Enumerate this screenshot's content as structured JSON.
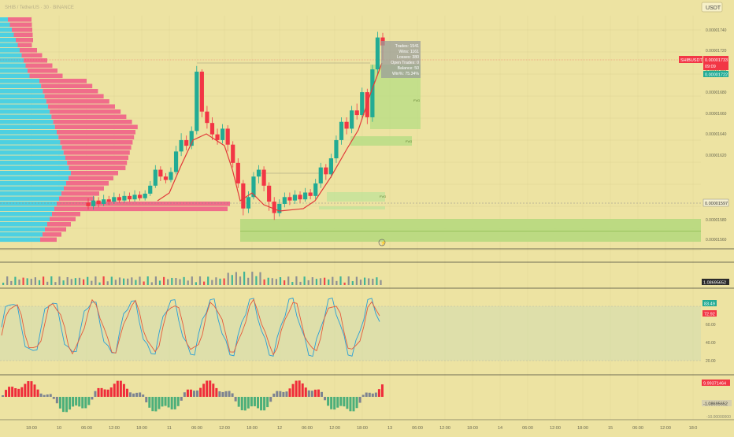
{
  "header": {
    "symbol_faded": "SHIB / TetherUS · 30 · BINANCE",
    "quote_badge": "USDT"
  },
  "colors": {
    "bg": "#ede3a2",
    "up": "#22ab94",
    "down": "#f23645",
    "vol_teal": "#4dd0e1",
    "vol_pink": "#f06d8a",
    "zone_green": "#a5d46a",
    "zone_light": "#b9dd86",
    "grid": "#d9cf92",
    "text": "#6b6a52",
    "k_line": "#2a9fd6",
    "d_line": "#e55b3c",
    "osc_up": "#ef2c3a",
    "osc_down": "#4caf7a",
    "osc_neutral": "#7d8391"
  },
  "price_axis": {
    "ticks": [
      "0.00001740",
      "0.00001720",
      "0.00001700",
      "0.00001680",
      "0.00001660",
      "0.00001640",
      "0.00001620",
      "0.00001580",
      "0.00001560"
    ],
    "symbol_label": "SHIBUSDT",
    "last_price": "0.00001733",
    "countdown": "09:09",
    "second_price": "0.00001722",
    "crosshair_price": "0.00001597"
  },
  "stats_box": {
    "trades": "Trades: 1541",
    "wins": "Wins: 1161",
    "losses": "Losses: 380",
    "open": "Open Trades: 0",
    "balance": "Balance: 50",
    "winrate": "Win%: 75.34%"
  },
  "fvg_labels": [
    "FVG",
    "FVG",
    "FVG"
  ],
  "volume_pane": {
    "value": "1.08695652"
  },
  "stoch_pane": {
    "k_value": "83.49",
    "d_value": "72.92",
    "ticks": [
      "60.00",
      "40.00",
      "20.00"
    ]
  },
  "osc_pane": {
    "top_value": "9.99371464",
    "bottom_value": "-1.08695652",
    "scale_tick": "-10.00000000"
  },
  "time_axis": {
    "labels": [
      "18:00",
      "10",
      "06:00",
      "12:00",
      "18:00",
      "11",
      "06:00",
      "12:00",
      "18:00",
      "12",
      "06:00",
      "12:00",
      "18:00",
      "13",
      "06:00",
      "12:00",
      "18:00",
      "14",
      "06:00",
      "12:00",
      "18:00",
      "15",
      "06:00",
      "12:00",
      "18:0"
    ]
  },
  "chart_data": {
    "type": "candlestick",
    "candles": [
      [
        1595,
        1592,
        1599,
        1589
      ],
      [
        1592,
        1597,
        1601,
        1589
      ],
      [
        1597,
        1594,
        1600,
        1591
      ],
      [
        1594,
        1598,
        1602,
        1592
      ],
      [
        1598,
        1596,
        1601,
        1593
      ],
      [
        1596,
        1600,
        1604,
        1594
      ],
      [
        1600,
        1597,
        1603,
        1595
      ],
      [
        1597,
        1601,
        1605,
        1595
      ],
      [
        1601,
        1598,
        1604,
        1596
      ],
      [
        1598,
        1602,
        1606,
        1596
      ],
      [
        1602,
        1599,
        1605,
        1597
      ],
      [
        1599,
        1603,
        1606,
        1597
      ],
      [
        1603,
        1610,
        1614,
        1601
      ],
      [
        1610,
        1624,
        1628,
        1608
      ],
      [
        1624,
        1618,
        1627,
        1614
      ],
      [
        1618,
        1615,
        1621,
        1612
      ],
      [
        1615,
        1622,
        1626,
        1613
      ],
      [
        1622,
        1640,
        1645,
        1620
      ],
      [
        1640,
        1650,
        1656,
        1636
      ],
      [
        1650,
        1645,
        1654,
        1641
      ],
      [
        1645,
        1658,
        1662,
        1642
      ],
      [
        1658,
        1710,
        1715,
        1655
      ],
      [
        1710,
        1675,
        1712,
        1670
      ],
      [
        1675,
        1665,
        1680,
        1660
      ],
      [
        1665,
        1655,
        1670,
        1650
      ],
      [
        1655,
        1650,
        1660,
        1646
      ],
      [
        1650,
        1660,
        1664,
        1647
      ],
      [
        1660,
        1646,
        1663,
        1640
      ],
      [
        1646,
        1630,
        1649,
        1626
      ],
      [
        1630,
        1612,
        1634,
        1608
      ],
      [
        1612,
        1590,
        1615,
        1584
      ],
      [
        1590,
        1600,
        1605,
        1586
      ],
      [
        1600,
        1618,
        1622,
        1598
      ],
      [
        1618,
        1624,
        1628,
        1612
      ],
      [
        1624,
        1610,
        1627,
        1605
      ],
      [
        1610,
        1596,
        1613,
        1588
      ],
      [
        1596,
        1586,
        1600,
        1580
      ],
      [
        1586,
        1594,
        1598,
        1583
      ],
      [
        1594,
        1600,
        1604,
        1591
      ],
      [
        1600,
        1597,
        1604,
        1593
      ],
      [
        1597,
        1602,
        1606,
        1594
      ],
      [
        1602,
        1598,
        1605,
        1595
      ],
      [
        1598,
        1604,
        1608,
        1596
      ],
      [
        1604,
        1601,
        1607,
        1598
      ],
      [
        1601,
        1612,
        1616,
        1598
      ],
      [
        1612,
        1626,
        1630,
        1608
      ],
      [
        1626,
        1620,
        1629,
        1615
      ],
      [
        1620,
        1634,
        1638,
        1617
      ],
      [
        1634,
        1650,
        1654,
        1630
      ],
      [
        1650,
        1666,
        1670,
        1646
      ],
      [
        1666,
        1660,
        1670,
        1655
      ],
      [
        1660,
        1676,
        1680,
        1656
      ],
      [
        1676,
        1672,
        1682,
        1668
      ],
      [
        1672,
        1692,
        1696,
        1668
      ],
      [
        1692,
        1670,
        1695,
        1664
      ],
      [
        1670,
        1712,
        1716,
        1666
      ],
      [
        1712,
        1740,
        1745,
        1708
      ],
      [
        1740,
        1733,
        1744,
        1720
      ]
    ],
    "y_min": 1556,
    "y_max": 1748,
    "unit": "e-8 USDT"
  }
}
